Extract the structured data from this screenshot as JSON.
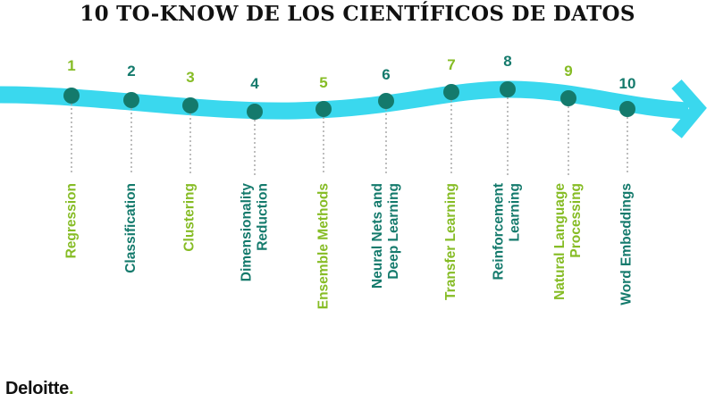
{
  "title": "10 TO-KNOW DE LOS CIENTÍFICOS DE DATOS",
  "colors": {
    "arrow": "#3ad8ee",
    "node": "#147a6c",
    "green": "#86bc25",
    "teal": "#147a6c",
    "connector": "#9a9a9a",
    "title": "#111111"
  },
  "steps": [
    {
      "number": "1",
      "lines": [
        "Regression"
      ],
      "color": "#86bc25"
    },
    {
      "number": "2",
      "lines": [
        "Classification"
      ],
      "color": "#147a6c"
    },
    {
      "number": "3",
      "lines": [
        "Clustering"
      ],
      "color": "#86bc25"
    },
    {
      "number": "4",
      "lines": [
        "Dimensionality",
        "Reduction"
      ],
      "color": "#147a6c"
    },
    {
      "number": "5",
      "lines": [
        "Ensemble Methods"
      ],
      "color": "#86bc25"
    },
    {
      "number": "6",
      "lines": [
        "Neural Nets and",
        "Deep Learning"
      ],
      "color": "#147a6c"
    },
    {
      "number": "7",
      "lines": [
        "Transfer Learning"
      ],
      "color": "#86bc25"
    },
    {
      "number": "8",
      "lines": [
        "Reinforcement",
        "Learning"
      ],
      "color": "#147a6c"
    },
    {
      "number": "9",
      "lines": [
        "Natural Language",
        "Processing"
      ],
      "color": "#86bc25"
    },
    {
      "number": "10",
      "lines": [
        "Word Embeddings"
      ],
      "color": "#147a6c"
    }
  ],
  "brand": {
    "name": "Deloitte",
    "dot": "."
  }
}
